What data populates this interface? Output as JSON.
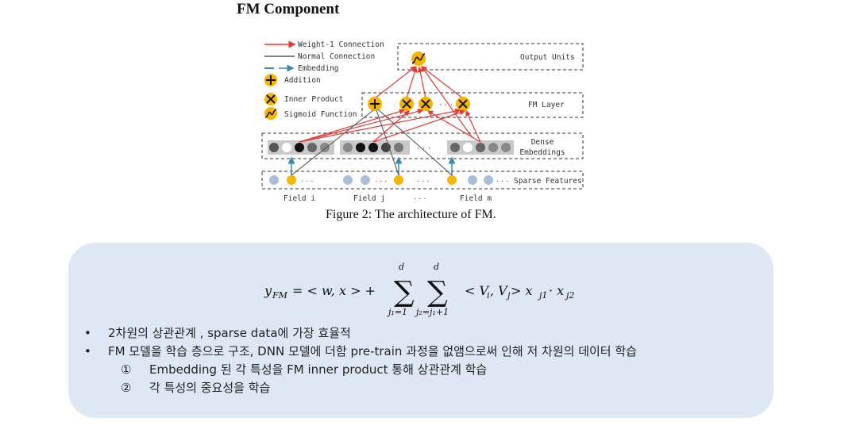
{
  "title": "FM Component",
  "figure": {
    "legend": [
      {
        "key": "weight1",
        "label": "Weight-1 Connection",
        "color": "#e53935"
      },
      {
        "key": "normal",
        "label": "Normal Connection",
        "color": "#555555"
      },
      {
        "key": "embedding",
        "label": "Embedding",
        "color": "#3a8ab3"
      },
      {
        "key": "addition",
        "label": "Addition"
      },
      {
        "key": "inner",
        "label": "Inner Product"
      },
      {
        "key": "sigmoid",
        "label": "Sigmoid Function"
      }
    ],
    "layers": {
      "output": "Output Units",
      "fm": "FM Layer",
      "dense_line1": "Dense",
      "dense_line2": "Embeddings",
      "sparse": "Sparse Features"
    },
    "fields": [
      "Field i",
      "Field j",
      "Field m"
    ],
    "ellipsis": "· · ·",
    "caption": "Figure 2: The architecture of FM.",
    "colors": {
      "node": "#f7b500",
      "sparse_node": "#a9bfd9",
      "dense_bg": "#c9c9c9"
    }
  },
  "formula": {
    "lhs": "y",
    "lhs_sub": "FM",
    "middle": "= < w, x >  +",
    "sum_upper": "d",
    "sum1_lower": "j₁=1",
    "sum2_lower": "j₂=j₁+1",
    "tail": "< V",
    "tail_sub_i": "i",
    "tail_mid": ", V",
    "tail_sub_j": "j",
    "tail_end": " > x",
    "x1_sub": "j1",
    "dot": " · x",
    "x2_sub": "j2"
  },
  "bullets": [
    "2차원의 상관관계 , sparse data에 가장 효율적",
    "FM 모델을 학습 층으로 구조, DNN 모델에 더함 pre-train 과정을 없앰으로써 인해 저 차원의 데이터 학습"
  ],
  "bullet_char": "•",
  "sub_items": [
    {
      "num": "①",
      "text": "Embedding 된 각 특성을 FM inner product 통해 상관관계 학습"
    },
    {
      "num": "②",
      "text": "각 특성의 중요성을 학습"
    }
  ]
}
